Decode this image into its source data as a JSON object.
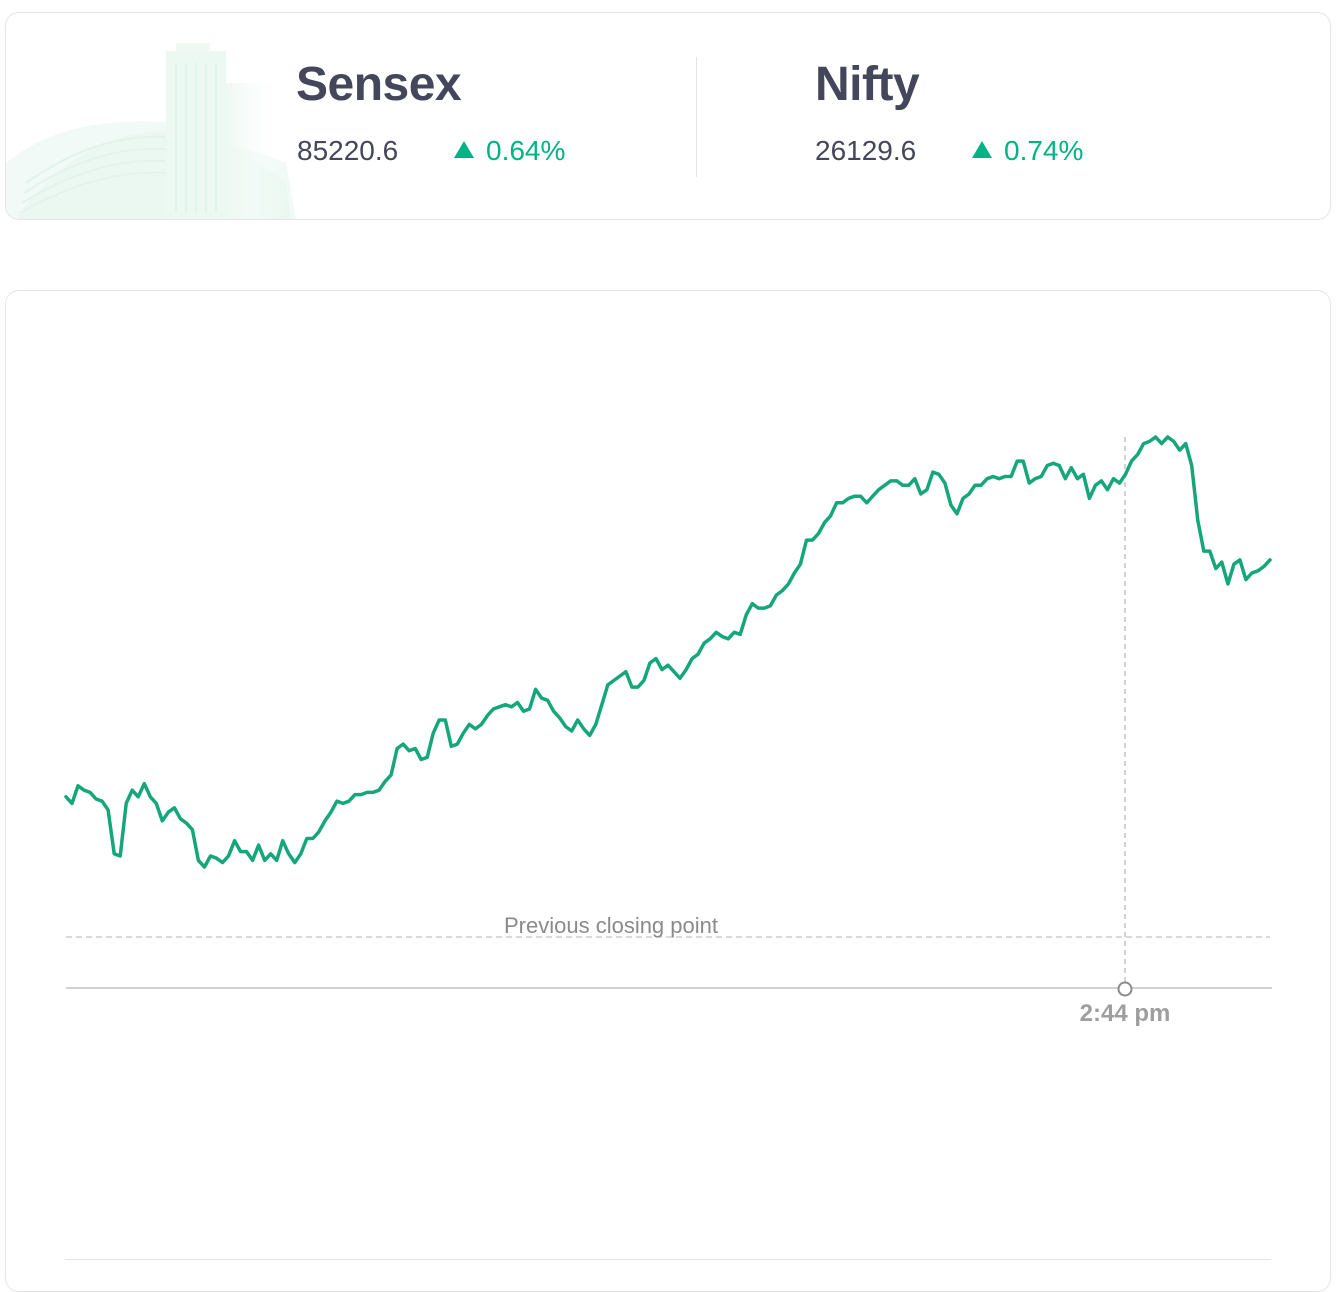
{
  "indices": [
    {
      "name": "Sensex",
      "value": "85220.6",
      "change": "0.64%",
      "direction": "up"
    },
    {
      "name": "Nifty",
      "value": "26129.6",
      "change": "0.74%",
      "direction": "up"
    }
  ],
  "colors": {
    "up": "#00b386",
    "text": "#44475b",
    "line": "#16a67b"
  },
  "chart_data": {
    "type": "line",
    "previous_close_label": "Previous closing point",
    "hover_time_label": "2:44 pm",
    "grid": false,
    "series": [
      {
        "values": [
          26052,
          26049,
          26057,
          26055,
          26054,
          26051,
          26050,
          26046,
          26026,
          26025,
          26049,
          26055,
          26052,
          26058,
          26052,
          26049,
          26041,
          26045,
          26047,
          26042,
          26040,
          26037,
          26023,
          26020,
          26025,
          26024,
          26022,
          26025,
          26032,
          26027,
          26027,
          26023,
          26030,
          26023,
          26026,
          26023,
          26032,
          26026,
          26022,
          26026,
          26033,
          26033,
          26036,
          26041,
          26045,
          26050,
          26049,
          26050,
          26053,
          26053,
          26054,
          26054,
          26055,
          26059,
          26062,
          26074,
          26076,
          26073,
          26074,
          26069,
          26070,
          26081,
          26087,
          26087,
          26075,
          26076,
          26081,
          26085,
          26083,
          26085,
          26089,
          26092,
          26093,
          26094,
          26093,
          26095,
          26091,
          26092,
          26101,
          26097,
          26096,
          26091,
          26088,
          26084,
          26082,
          26087,
          26083,
          26080,
          26085,
          26094,
          26103,
          26105,
          26107,
          26109,
          26102,
          26102,
          26105,
          26113,
          26115,
          26110,
          26112,
          26109,
          26106,
          26110,
          26115,
          26117,
          26122,
          26124,
          26127,
          26125,
          26124,
          26127,
          26126,
          26135,
          26140,
          26138,
          26138,
          26139,
          26144,
          26146,
          26149,
          26154,
          26158,
          26169,
          26169,
          26172,
          26177,
          26180,
          26186,
          26186,
          26188,
          26189,
          26189,
          26186,
          26189,
          26192,
          26194,
          26196,
          26196,
          26194,
          26194,
          26197,
          26190,
          26192,
          26200,
          26199,
          26195,
          26185,
          26181,
          26188,
          26190,
          26194,
          26194,
          26197,
          26198,
          26197,
          26198,
          26198,
          26205,
          26205,
          26195,
          26197,
          26198,
          26203,
          26204,
          26203,
          26197,
          26202,
          26197,
          26199,
          26188,
          26194,
          26196,
          26192,
          26197,
          26195,
          26199,
          26205,
          26208,
          26213,
          26214,
          26216,
          26213,
          26216,
          26214,
          26210,
          26213,
          26203,
          26178,
          26164,
          26164,
          26156,
          26159,
          26149,
          26158,
          26160,
          26151,
          26154,
          26155,
          26157,
          26160
        ]
      }
    ]
  }
}
